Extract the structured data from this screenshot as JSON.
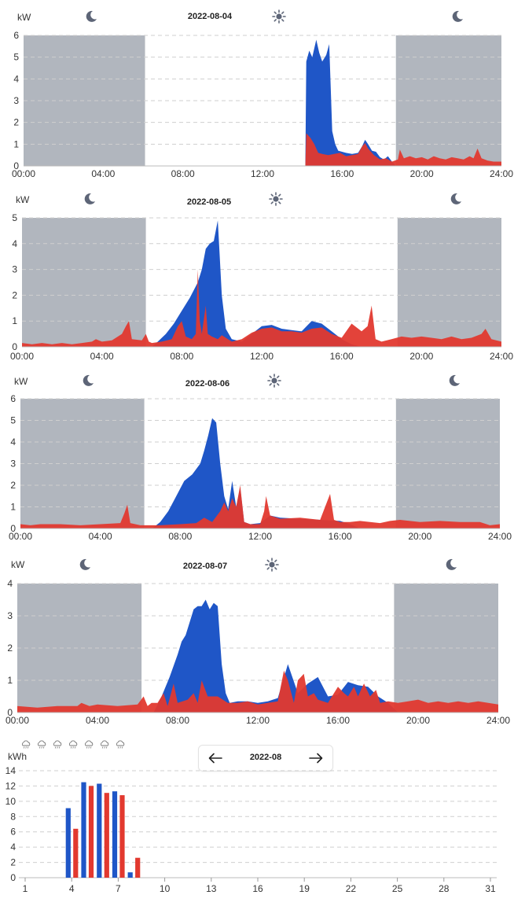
{
  "colors": {
    "production": "#1f56c7",
    "consumption": "#e2392f",
    "night": "#b1b6be",
    "grid": "#cfcfcf",
    "icon": "#5d6577"
  },
  "daily_charts": [
    {
      "date": "2022-08-04",
      "unit": "kW",
      "ymax": 6,
      "yticks": [
        0,
        1,
        2,
        3,
        4,
        5,
        6
      ]
    },
    {
      "date": "2022-08-05",
      "unit": "kW",
      "ymax": 5,
      "yticks": [
        0,
        1,
        2,
        3,
        4,
        5
      ]
    },
    {
      "date": "2022-08-06",
      "unit": "kW",
      "ymax": 6,
      "yticks": [
        0,
        1,
        2,
        3,
        4,
        5,
        6
      ]
    },
    {
      "date": "2022-08-07",
      "unit": "kW",
      "ymax": 4,
      "yticks": [
        0,
        1,
        2,
        3,
        4
      ]
    }
  ],
  "x_ticks": [
    "00:00",
    "04:00",
    "08:00",
    "12:00",
    "16:00",
    "20:00",
    "24:00"
  ],
  "monthly": {
    "period_label": "2022-08",
    "unit": "kWh",
    "weather_icons": [
      "cloud-rain-icon",
      "cloud-rain-icon",
      "cloud-rain-icon",
      "cloud-rain-icon",
      "cloud-rain-icon",
      "cloud-rain-icon",
      "cloud-rain-icon"
    ],
    "yticks": [
      0,
      2,
      4,
      6,
      8,
      10,
      12,
      14
    ],
    "xticks": [
      "1",
      "4",
      "7",
      "10",
      "13",
      "16",
      "19",
      "22",
      "25",
      "28",
      "31"
    ]
  },
  "chart_data": [
    {
      "type": "area",
      "title": "2022-08-04",
      "ylabel": "kW",
      "ylim": [
        0,
        6
      ],
      "xlim": [
        0,
        24
      ],
      "night_ranges": [
        [
          0,
          6.1
        ],
        [
          18.7,
          24
        ]
      ],
      "series": [
        {
          "color": "#1f56c7",
          "x": [
            0,
            14.15,
            14.2,
            14.35,
            14.5,
            14.7,
            14.85,
            15.0,
            15.2,
            15.35,
            15.5,
            15.65,
            15.8,
            16.0,
            16.2,
            16.5,
            16.8,
            17.0,
            17.15,
            17.3,
            17.5,
            17.7,
            17.9,
            18.1,
            18.3,
            18.5,
            18.7,
            24
          ],
          "y": [
            0,
            0,
            4.8,
            5.3,
            5.0,
            5.8,
            5.2,
            4.8,
            5.1,
            5.6,
            1.6,
            1.0,
            0.7,
            0.65,
            0.6,
            0.55,
            0.6,
            0.9,
            1.2,
            1.0,
            0.7,
            0.65,
            0.4,
            0.3,
            0.45,
            0.2,
            0,
            0
          ]
        },
        {
          "color": "#e2392f",
          "x": [
            0,
            14.15,
            14.2,
            14.4,
            14.6,
            14.8,
            15.0,
            15.3,
            15.6,
            15.9,
            16.2,
            16.5,
            16.8,
            17.0,
            17.15,
            17.3,
            17.6,
            17.9,
            18.2,
            18.5,
            18.8,
            18.9,
            19.1,
            19.4,
            19.7,
            20.0,
            20.3,
            20.6,
            20.9,
            21.2,
            21.5,
            21.8,
            22.1,
            22.4,
            22.6,
            22.8,
            23.0,
            23.3,
            23.6,
            24.0
          ],
          "y": [
            0,
            0,
            1.5,
            1.3,
            1.0,
            0.6,
            0.55,
            0.5,
            0.55,
            0.6,
            0.45,
            0.5,
            0.55,
            0.9,
            1.05,
            0.8,
            0.5,
            0.3,
            0.35,
            0.2,
            0.3,
            0.75,
            0.35,
            0.45,
            0.35,
            0.4,
            0.3,
            0.45,
            0.35,
            0.3,
            0.4,
            0.35,
            0.3,
            0.45,
            0.35,
            0.8,
            0.35,
            0.25,
            0.2,
            0.2
          ]
        }
      ]
    },
    {
      "type": "area",
      "title": "2022-08-05",
      "ylabel": "kW",
      "ylim": [
        0,
        5
      ],
      "xlim": [
        0,
        24
      ],
      "night_ranges": [
        [
          0,
          6.2
        ],
        [
          18.8,
          24
        ]
      ],
      "series": [
        {
          "color": "#1f56c7",
          "x": [
            0,
            6.5,
            6.8,
            7.2,
            7.6,
            8.0,
            8.4,
            8.8,
            9.0,
            9.2,
            9.4,
            9.6,
            9.8,
            9.9,
            10.0,
            10.2,
            10.5,
            11.0,
            11.5,
            12.0,
            12.5,
            13.0,
            13.5,
            14.0,
            14.5,
            15.0,
            15.5,
            16.0,
            16.5,
            17.0,
            24
          ],
          "y": [
            0,
            0,
            0.2,
            0.5,
            0.9,
            1.4,
            1.9,
            2.5,
            3.0,
            3.8,
            4.0,
            4.1,
            4.9,
            3.5,
            2.0,
            0.7,
            0.3,
            0.2,
            0.5,
            0.8,
            0.85,
            0.7,
            0.65,
            0.6,
            1.0,
            0.9,
            0.6,
            0.3,
            0.1,
            0,
            0
          ]
        },
        {
          "color": "#e2392f",
          "x": [
            0,
            0.5,
            1.0,
            1.5,
            2.0,
            2.5,
            3.0,
            3.5,
            3.7,
            4.0,
            4.5,
            5.0,
            5.2,
            5.35,
            5.5,
            6.0,
            6.2,
            6.35,
            6.5,
            7.0,
            7.5,
            7.8,
            8.0,
            8.2,
            8.5,
            8.7,
            8.8,
            8.9,
            9.0,
            9.2,
            9.3,
            9.5,
            9.8,
            10.0,
            10.5,
            11.0,
            11.5,
            12.0,
            12.5,
            13.0,
            13.5,
            14.0,
            14.5,
            15.0,
            15.5,
            16.0,
            16.5,
            17.0,
            17.3,
            17.5,
            17.7,
            18.0,
            18.5,
            19.0,
            19.5,
            20.0,
            20.5,
            21.0,
            21.5,
            22.0,
            22.5,
            23.0,
            23.2,
            23.5,
            24.0
          ],
          "y": [
            0.15,
            0.1,
            0.15,
            0.1,
            0.15,
            0.1,
            0.15,
            0.2,
            0.3,
            0.2,
            0.25,
            0.5,
            0.8,
            1.0,
            0.3,
            0.25,
            0.5,
            0.2,
            0.15,
            0.2,
            0.3,
            0.8,
            1.0,
            0.4,
            0.3,
            0.5,
            3.0,
            1.0,
            0.5,
            1.6,
            0.5,
            0.4,
            0.3,
            0.45,
            0.2,
            0.3,
            0.55,
            0.7,
            0.75,
            0.6,
            0.6,
            0.55,
            0.7,
            0.75,
            0.5,
            0.35,
            0.9,
            0.6,
            0.8,
            1.6,
            0.3,
            0.2,
            0.3,
            0.4,
            0.35,
            0.4,
            0.35,
            0.3,
            0.4,
            0.3,
            0.35,
            0.5,
            0.7,
            0.3,
            0.2
          ]
        }
      ]
    },
    {
      "type": "area",
      "title": "2022-08-06",
      "ylabel": "kW",
      "ylim": [
        0,
        6
      ],
      "xlim": [
        0,
        24
      ],
      "night_ranges": [
        [
          0,
          6.2
        ],
        [
          18.8,
          24
        ]
      ],
      "series": [
        {
          "color": "#1f56c7",
          "x": [
            0,
            6.6,
            7.0,
            7.4,
            7.8,
            8.2,
            8.6,
            9.0,
            9.2,
            9.4,
            9.6,
            9.8,
            10.0,
            10.2,
            10.4,
            10.6,
            10.8,
            11.0,
            11.2,
            11.5,
            12.0,
            12.5,
            13.0,
            14.0,
            15.0,
            16.0,
            16.5,
            17.0,
            24
          ],
          "y": [
            0,
            0,
            0.3,
            0.8,
            1.5,
            2.2,
            2.5,
            3.0,
            3.6,
            4.3,
            5.1,
            4.9,
            3.0,
            1.5,
            0.9,
            2.2,
            1.0,
            1.9,
            0.3,
            0.2,
            0.25,
            0.6,
            0.5,
            0.45,
            0.4,
            0.35,
            0.2,
            0,
            0
          ]
        },
        {
          "color": "#e2392f",
          "x": [
            0,
            0.5,
            1.0,
            2.0,
            3.0,
            4.0,
            5.0,
            5.2,
            5.35,
            5.5,
            6.0,
            7.0,
            8.0,
            8.8,
            9.2,
            9.6,
            10.0,
            10.2,
            10.4,
            10.6,
            10.8,
            11.0,
            11.2,
            11.5,
            12.0,
            12.2,
            12.3,
            12.5,
            13.0,
            14.0,
            15.0,
            15.5,
            15.7,
            16.0,
            16.5,
            17.0,
            17.5,
            18.0,
            18.5,
            19.0,
            20.0,
            21.0,
            22.0,
            23.0,
            23.5,
            24.0
          ],
          "y": [
            0.2,
            0.15,
            0.2,
            0.2,
            0.15,
            0.2,
            0.25,
            0.7,
            1.1,
            0.25,
            0.15,
            0.15,
            0.2,
            0.25,
            0.5,
            0.3,
            0.8,
            1.2,
            0.8,
            1.4,
            1.0,
            2.0,
            0.3,
            0.2,
            0.2,
            0.8,
            1.5,
            0.6,
            0.45,
            0.5,
            0.4,
            1.6,
            0.4,
            0.3,
            0.3,
            0.35,
            0.3,
            0.25,
            0.35,
            0.4,
            0.3,
            0.35,
            0.3,
            0.3,
            0.15,
            0.2
          ]
        }
      ]
    },
    {
      "type": "area",
      "title": "2022-08-07",
      "ylabel": "kW",
      "ylim": [
        0,
        4
      ],
      "xlim": [
        0,
        24
      ],
      "night_ranges": [
        [
          0,
          6.2
        ],
        [
          18.8,
          24
        ]
      ],
      "series": [
        {
          "color": "#1f56c7",
          "x": [
            0,
            6.8,
            7.2,
            7.6,
            8.0,
            8.2,
            8.4,
            8.6,
            8.8,
            9.0,
            9.2,
            9.4,
            9.6,
            9.8,
            10.0,
            10.2,
            10.4,
            10.6,
            11.0,
            11.5,
            12.0,
            12.5,
            13.0,
            13.5,
            14.0,
            14.5,
            15.0,
            15.5,
            16.0,
            16.5,
            17.0,
            17.5,
            18.0,
            18.5,
            19.0,
            24
          ],
          "y": [
            0,
            0,
            0.5,
            1.1,
            1.8,
            2.2,
            2.4,
            2.8,
            3.2,
            3.3,
            3.3,
            3.5,
            3.2,
            3.4,
            3.3,
            1.5,
            0.6,
            0.3,
            0.35,
            0.35,
            0.3,
            0.35,
            0.45,
            1.5,
            0.6,
            0.9,
            1.1,
            0.5,
            0.55,
            0.95,
            0.85,
            0.8,
            0.5,
            0.3,
            0,
            0
          ]
        },
        {
          "color": "#e2392f",
          "x": [
            0,
            1.0,
            2.0,
            3.0,
            3.2,
            3.4,
            3.6,
            4.0,
            5.0,
            6.0,
            6.3,
            6.5,
            6.7,
            7.0,
            7.3,
            7.5,
            7.8,
            8.0,
            8.5,
            8.8,
            9.0,
            9.2,
            9.5,
            10.0,
            10.5,
            11.0,
            11.5,
            12.0,
            12.5,
            13.0,
            13.3,
            13.5,
            13.8,
            14.0,
            14.3,
            14.5,
            14.8,
            15.0,
            15.5,
            16.0,
            16.3,
            16.5,
            16.8,
            17.0,
            17.3,
            17.6,
            17.9,
            18.1,
            18.5,
            19.0,
            19.5,
            20.0,
            20.5,
            21.0,
            21.5,
            22.0,
            22.5,
            23.0,
            23.5,
            24.0
          ],
          "y": [
            0.2,
            0.15,
            0.2,
            0.2,
            0.3,
            0.25,
            0.2,
            0.25,
            0.2,
            0.25,
            0.5,
            0.2,
            0.3,
            0.3,
            0.6,
            0.2,
            0.9,
            0.3,
            0.4,
            0.6,
            0.3,
            1.0,
            0.5,
            0.5,
            0.3,
            0.3,
            0.35,
            0.25,
            0.3,
            0.35,
            1.3,
            1.0,
            0.3,
            1.0,
            1.2,
            0.5,
            0.6,
            0.4,
            0.3,
            0.8,
            0.6,
            0.5,
            0.8,
            0.5,
            0.9,
            0.5,
            0.7,
            0.3,
            0.35,
            0.3,
            0.35,
            0.4,
            0.3,
            0.35,
            0.3,
            0.35,
            0.3,
            0.35,
            0.3,
            0.25
          ]
        }
      ]
    },
    {
      "type": "bar",
      "title": "2022-08",
      "ylabel": "kWh",
      "ylim": [
        0,
        14
      ],
      "categories": [
        1,
        2,
        3,
        4,
        5,
        6,
        7,
        8,
        9,
        10,
        11,
        12,
        13,
        14,
        15,
        16,
        17,
        18,
        19,
        20,
        21,
        22,
        23,
        24,
        25,
        26,
        27,
        28,
        29,
        30,
        31
      ],
      "series": [
        {
          "color": "#1f56c7",
          "values": [
            null,
            null,
            null,
            9.1,
            12.5,
            12.3,
            11.3,
            0.7,
            null,
            null,
            null,
            null,
            null,
            null,
            null,
            null,
            null,
            null,
            null,
            null,
            null,
            null,
            null,
            null,
            null,
            null,
            null,
            null,
            null,
            null,
            null
          ]
        },
        {
          "color": "#e2392f",
          "values": [
            null,
            null,
            null,
            6.4,
            12.0,
            11.1,
            10.8,
            2.6,
            null,
            null,
            null,
            null,
            null,
            null,
            null,
            null,
            null,
            null,
            null,
            null,
            null,
            null,
            null,
            null,
            null,
            null,
            null,
            null,
            null,
            null,
            null
          ]
        }
      ]
    }
  ]
}
